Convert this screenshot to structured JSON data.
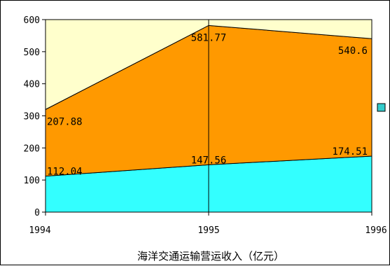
{
  "chart_data": {
    "type": "area",
    "stacked": true,
    "title": "",
    "xlabel": "海洋交通运输营运收入（亿元）",
    "ylabel": "",
    "categories": [
      "1994",
      "1995",
      "1996"
    ],
    "ylim": [
      0,
      600
    ],
    "yticks": [
      0,
      100,
      200,
      300,
      400,
      500,
      600
    ],
    "grid": false,
    "series": [
      {
        "values": [
          112.04,
          147.56,
          174.51
        ],
        "color": "#33FFFF"
      },
      {
        "values": [
          207.88,
          434.21,
          366.09
        ],
        "color": "#FF9900"
      },
      {
        "values": [
          280.08,
          18.23,
          59.4
        ],
        "color": "#FFFFCC"
      }
    ],
    "data_labels": [
      {
        "category": "1994",
        "text": "112.04"
      },
      {
        "category": "1995",
        "text": "147.56"
      },
      {
        "category": "1996",
        "text": "174.51"
      },
      {
        "category": "1994",
        "text": "207.88"
      },
      {
        "category": "1995",
        "text": "581.77"
      },
      {
        "category": "1996",
        "text": "540.6"
      }
    ],
    "legend": {
      "placement": "right",
      "swatch_color": "#33CCCC"
    }
  }
}
